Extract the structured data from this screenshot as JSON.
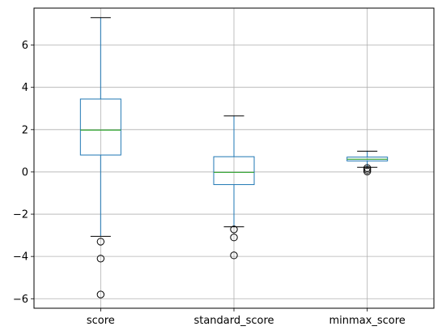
{
  "chart_data": {
    "type": "boxplot",
    "title": "",
    "xlabel": "",
    "ylabel": "",
    "ylim": [
      -6.45,
      7.75
    ],
    "yticks": [
      -6,
      -4,
      -2,
      0,
      2,
      4,
      6
    ],
    "grid": true,
    "categories": [
      "score",
      "standard_score",
      "minmax_score"
    ],
    "boxes": [
      {
        "name": "score",
        "whisker_low": -3.05,
        "q1": 0.8,
        "median": 1.98,
        "q3": 3.45,
        "whisker_high": 7.3,
        "outliers": [
          -3.3,
          -4.1,
          -5.8
        ]
      },
      {
        "name": "standard_score",
        "whisker_low": -2.6,
        "q1": -0.6,
        "median": -0.02,
        "q3": 0.72,
        "whisker_high": 2.65,
        "outliers": [
          -2.72,
          -3.1,
          -3.95
        ]
      },
      {
        "name": "minmax_score",
        "whisker_low": 0.22,
        "q1": 0.52,
        "median": 0.6,
        "q3": 0.7,
        "whisker_high": 0.98,
        "outliers": [
          0.18,
          0.1,
          0.02
        ]
      }
    ],
    "colors": {
      "box": "#1f77b4",
      "median": "#2ca02c",
      "caps": "#000000",
      "grid": "#b0b0b0"
    }
  }
}
